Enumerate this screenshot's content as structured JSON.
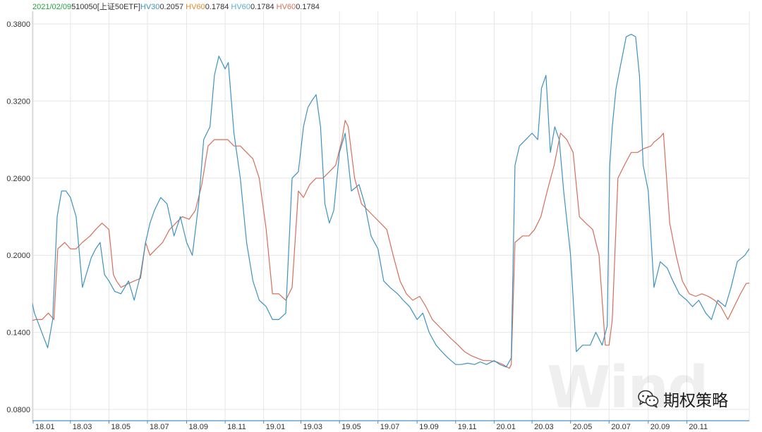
{
  "header": {
    "date": "2021/02/09",
    "code": "510050",
    "name": "[上证50ETF]",
    "hv30_label": "HV30",
    "hv30_value": "0.2057",
    "hv60a_label": "HV60",
    "hv60a_value": "0.1784",
    "hv60b_label": "HV60",
    "hv60b_value": "0.1784",
    "hv60c_label": "HV60",
    "hv60c_value": "0.1784"
  },
  "watermark": "Wind",
  "brand": {
    "text": "期权策略",
    "icon": "wechat-icon"
  },
  "colors": {
    "hv30": "#3d93c2",
    "hv60": "#d76e5a",
    "date": "#22a43a",
    "hv60_orange": "#e78a2c",
    "hv60_teal": "#5aaed0",
    "grid": "#e6e6e6",
    "axis": "#4a8fc0"
  },
  "chart_data": {
    "type": "line",
    "ylim": [
      0.08,
      0.38
    ],
    "y_ticks": [
      "0.0800",
      "0.1400",
      "0.2000",
      "0.2600",
      "0.3200",
      "0.3800"
    ],
    "x_ticks": [
      "18.01",
      "18.03",
      "18.05",
      "18.07",
      "18.09",
      "18.11",
      "19.01",
      "19.03",
      "19.05",
      "19.07",
      "19.09",
      "19.11",
      "20.01",
      "20.03",
      "20.05",
      "20.07",
      "20.09",
      "20.11"
    ],
    "x_range": [
      "2018-01-01",
      "2021-02-09"
    ],
    "grid": true,
    "series": [
      {
        "name": "HV30",
        "color": "#3d93c2",
        "x": [
          "2017-12-22",
          "2018-01-03",
          "2018-01-10",
          "2018-01-17",
          "2018-01-24",
          "2018-02-01",
          "2018-02-08",
          "2018-02-15",
          "2018-02-22",
          "2018-03-01",
          "2018-03-10",
          "2018-03-20",
          "2018-03-26",
          "2018-04-03",
          "2018-04-10",
          "2018-04-17",
          "2018-04-24",
          "2018-05-01",
          "2018-05-10",
          "2018-05-20",
          "2018-06-01",
          "2018-06-10",
          "2018-06-20",
          "2018-06-28",
          "2018-07-05",
          "2018-07-12",
          "2018-07-22",
          "2018-08-01",
          "2018-08-12",
          "2018-08-22",
          "2018-09-01",
          "2018-09-10",
          "2018-09-20",
          "2018-09-28",
          "2018-10-08",
          "2018-10-15",
          "2018-10-22",
          "2018-11-01",
          "2018-11-06",
          "2018-11-15",
          "2018-11-25",
          "2018-12-05",
          "2018-12-15",
          "2018-12-25",
          "2019-01-05",
          "2019-01-15",
          "2019-01-25",
          "2019-02-05",
          "2019-02-15",
          "2019-02-25",
          "2019-03-05",
          "2019-03-12",
          "2019-03-18",
          "2019-03-25",
          "2019-04-01",
          "2019-04-08",
          "2019-04-15",
          "2019-04-22",
          "2019-05-01",
          "2019-05-10",
          "2019-05-20",
          "2019-06-01",
          "2019-06-10",
          "2019-06-20",
          "2019-07-01",
          "2019-07-10",
          "2019-07-20",
          "2019-08-01",
          "2019-08-10",
          "2019-08-20",
          "2019-09-01",
          "2019-09-10",
          "2019-09-20",
          "2019-10-01",
          "2019-10-10",
          "2019-10-20",
          "2019-11-01",
          "2019-11-10",
          "2019-11-20",
          "2019-12-01",
          "2019-12-10",
          "2019-12-20",
          "2020-01-01",
          "2020-01-10",
          "2020-01-20",
          "2020-01-28",
          "2020-02-03",
          "2020-02-10",
          "2020-02-20",
          "2020-03-01",
          "2020-03-10",
          "2020-03-16",
          "2020-03-23",
          "2020-03-30",
          "2020-04-06",
          "2020-04-13",
          "2020-04-20",
          "2020-05-01",
          "2020-05-10",
          "2020-05-20",
          "2020-06-01",
          "2020-06-10",
          "2020-06-20",
          "2020-06-28",
          "2020-07-02",
          "2020-07-06",
          "2020-07-12",
          "2020-07-20",
          "2020-07-28",
          "2020-08-05",
          "2020-08-12",
          "2020-08-18",
          "2020-08-24",
          "2020-09-01",
          "2020-09-10",
          "2020-09-20",
          "2020-10-01",
          "2020-10-10",
          "2020-10-20",
          "2020-11-01",
          "2020-11-10",
          "2020-11-20",
          "2020-12-01",
          "2020-12-10",
          "2020-12-20",
          "2021-01-01",
          "2021-01-10",
          "2021-01-20",
          "2021-02-01",
          "2021-02-09"
        ],
        "values": [
          0.182,
          0.155,
          0.146,
          0.137,
          0.128,
          0.15,
          0.23,
          0.25,
          0.25,
          0.245,
          0.23,
          0.175,
          0.185,
          0.198,
          0.205,
          0.21,
          0.185,
          0.18,
          0.172,
          0.17,
          0.18,
          0.165,
          0.185,
          0.21,
          0.225,
          0.235,
          0.245,
          0.24,
          0.215,
          0.23,
          0.21,
          0.2,
          0.24,
          0.29,
          0.3,
          0.34,
          0.355,
          0.345,
          0.35,
          0.295,
          0.26,
          0.21,
          0.18,
          0.165,
          0.16,
          0.15,
          0.15,
          0.155,
          0.26,
          0.265,
          0.3,
          0.315,
          0.32,
          0.325,
          0.3,
          0.24,
          0.225,
          0.235,
          0.28,
          0.295,
          0.25,
          0.255,
          0.24,
          0.215,
          0.205,
          0.18,
          0.175,
          0.17,
          0.165,
          0.16,
          0.15,
          0.155,
          0.14,
          0.13,
          0.125,
          0.12,
          0.115,
          0.115,
          0.116,
          0.115,
          0.117,
          0.115,
          0.118,
          0.115,
          0.113,
          0.12,
          0.27,
          0.285,
          0.29,
          0.295,
          0.29,
          0.33,
          0.34,
          0.28,
          0.3,
          0.29,
          0.25,
          0.2,
          0.125,
          0.13,
          0.13,
          0.14,
          0.13,
          0.145,
          0.27,
          0.3,
          0.33,
          0.35,
          0.37,
          0.372,
          0.37,
          0.34,
          0.27,
          0.25,
          0.175,
          0.195,
          0.19,
          0.18,
          0.17,
          0.165,
          0.16,
          0.165,
          0.155,
          0.15,
          0.165,
          0.16,
          0.175,
          0.195,
          0.2,
          0.2057
        ]
      },
      {
        "name": "HV60",
        "color": "#d76e5a",
        "x": [
          "2017-12-22",
          "2018-01-05",
          "2018-01-15",
          "2018-01-25",
          "2018-02-03",
          "2018-02-09",
          "2018-02-20",
          "2018-03-01",
          "2018-03-10",
          "2018-03-20",
          "2018-04-01",
          "2018-04-10",
          "2018-04-20",
          "2018-05-01",
          "2018-05-08",
          "2018-05-13",
          "2018-05-20",
          "2018-06-01",
          "2018-06-10",
          "2018-06-20",
          "2018-06-28",
          "2018-07-05",
          "2018-07-15",
          "2018-07-25",
          "2018-08-05",
          "2018-08-15",
          "2018-08-25",
          "2018-09-05",
          "2018-09-15",
          "2018-09-25",
          "2018-10-05",
          "2018-10-15",
          "2018-10-25",
          "2018-11-05",
          "2018-11-15",
          "2018-11-25",
          "2018-12-05",
          "2018-12-15",
          "2018-12-25",
          "2019-01-05",
          "2019-01-15",
          "2019-01-25",
          "2019-02-05",
          "2019-02-15",
          "2019-02-25",
          "2019-03-05",
          "2019-03-15",
          "2019-03-25",
          "2019-04-05",
          "2019-04-15",
          "2019-04-25",
          "2019-05-05",
          "2019-05-10",
          "2019-05-15",
          "2019-05-25",
          "2019-06-05",
          "2019-06-15",
          "2019-06-25",
          "2019-07-05",
          "2019-07-15",
          "2019-07-25",
          "2019-08-05",
          "2019-08-15",
          "2019-08-25",
          "2019-09-05",
          "2019-09-15",
          "2019-09-25",
          "2019-10-05",
          "2019-10-15",
          "2019-10-25",
          "2019-11-05",
          "2019-11-15",
          "2019-11-25",
          "2019-12-05",
          "2019-12-15",
          "2019-12-25",
          "2020-01-05",
          "2020-01-15",
          "2020-01-25",
          "2020-01-28",
          "2020-02-03",
          "2020-02-15",
          "2020-02-25",
          "2020-03-05",
          "2020-03-15",
          "2020-03-25",
          "2020-04-05",
          "2020-04-15",
          "2020-04-25",
          "2020-05-05",
          "2020-05-15",
          "2020-05-25",
          "2020-06-05",
          "2020-06-15",
          "2020-06-25",
          "2020-07-01",
          "2020-07-06",
          "2020-07-15",
          "2020-07-25",
          "2020-08-05",
          "2020-08-15",
          "2020-08-25",
          "2020-09-05",
          "2020-09-10",
          "2020-09-15",
          "2020-09-20",
          "2020-09-25",
          "2020-10-05",
          "2020-10-15",
          "2020-10-25",
          "2020-11-05",
          "2020-11-15",
          "2020-11-25",
          "2020-12-05",
          "2020-12-15",
          "2020-12-25",
          "2021-01-05",
          "2021-01-15",
          "2021-01-25",
          "2021-02-03",
          "2021-02-09"
        ],
        "values": [
          0.148,
          0.15,
          0.15,
          0.155,
          0.15,
          0.205,
          0.21,
          0.205,
          0.205,
          0.21,
          0.215,
          0.22,
          0.225,
          0.22,
          0.185,
          0.18,
          0.175,
          0.178,
          0.18,
          0.182,
          0.21,
          0.2,
          0.205,
          0.21,
          0.22,
          0.225,
          0.23,
          0.228,
          0.235,
          0.255,
          0.285,
          0.29,
          0.29,
          0.29,
          0.285,
          0.285,
          0.28,
          0.275,
          0.26,
          0.22,
          0.17,
          0.17,
          0.165,
          0.175,
          0.25,
          0.245,
          0.255,
          0.26,
          0.26,
          0.265,
          0.27,
          0.29,
          0.305,
          0.3,
          0.26,
          0.24,
          0.235,
          0.23,
          0.225,
          0.22,
          0.2,
          0.18,
          0.17,
          0.165,
          0.168,
          0.16,
          0.15,
          0.145,
          0.14,
          0.135,
          0.13,
          0.125,
          0.122,
          0.12,
          0.118,
          0.118,
          0.117,
          0.115,
          0.112,
          0.115,
          0.21,
          0.215,
          0.215,
          0.22,
          0.23,
          0.25,
          0.27,
          0.295,
          0.29,
          0.28,
          0.23,
          0.225,
          0.22,
          0.2,
          0.13,
          0.13,
          0.15,
          0.26,
          0.27,
          0.28,
          0.28,
          0.283,
          0.285,
          0.288,
          0.29,
          0.292,
          0.295,
          0.225,
          0.2,
          0.18,
          0.17,
          0.168,
          0.17,
          0.168,
          0.165,
          0.16,
          0.15,
          0.16,
          0.17,
          0.178,
          0.1784
        ]
      }
    ]
  }
}
